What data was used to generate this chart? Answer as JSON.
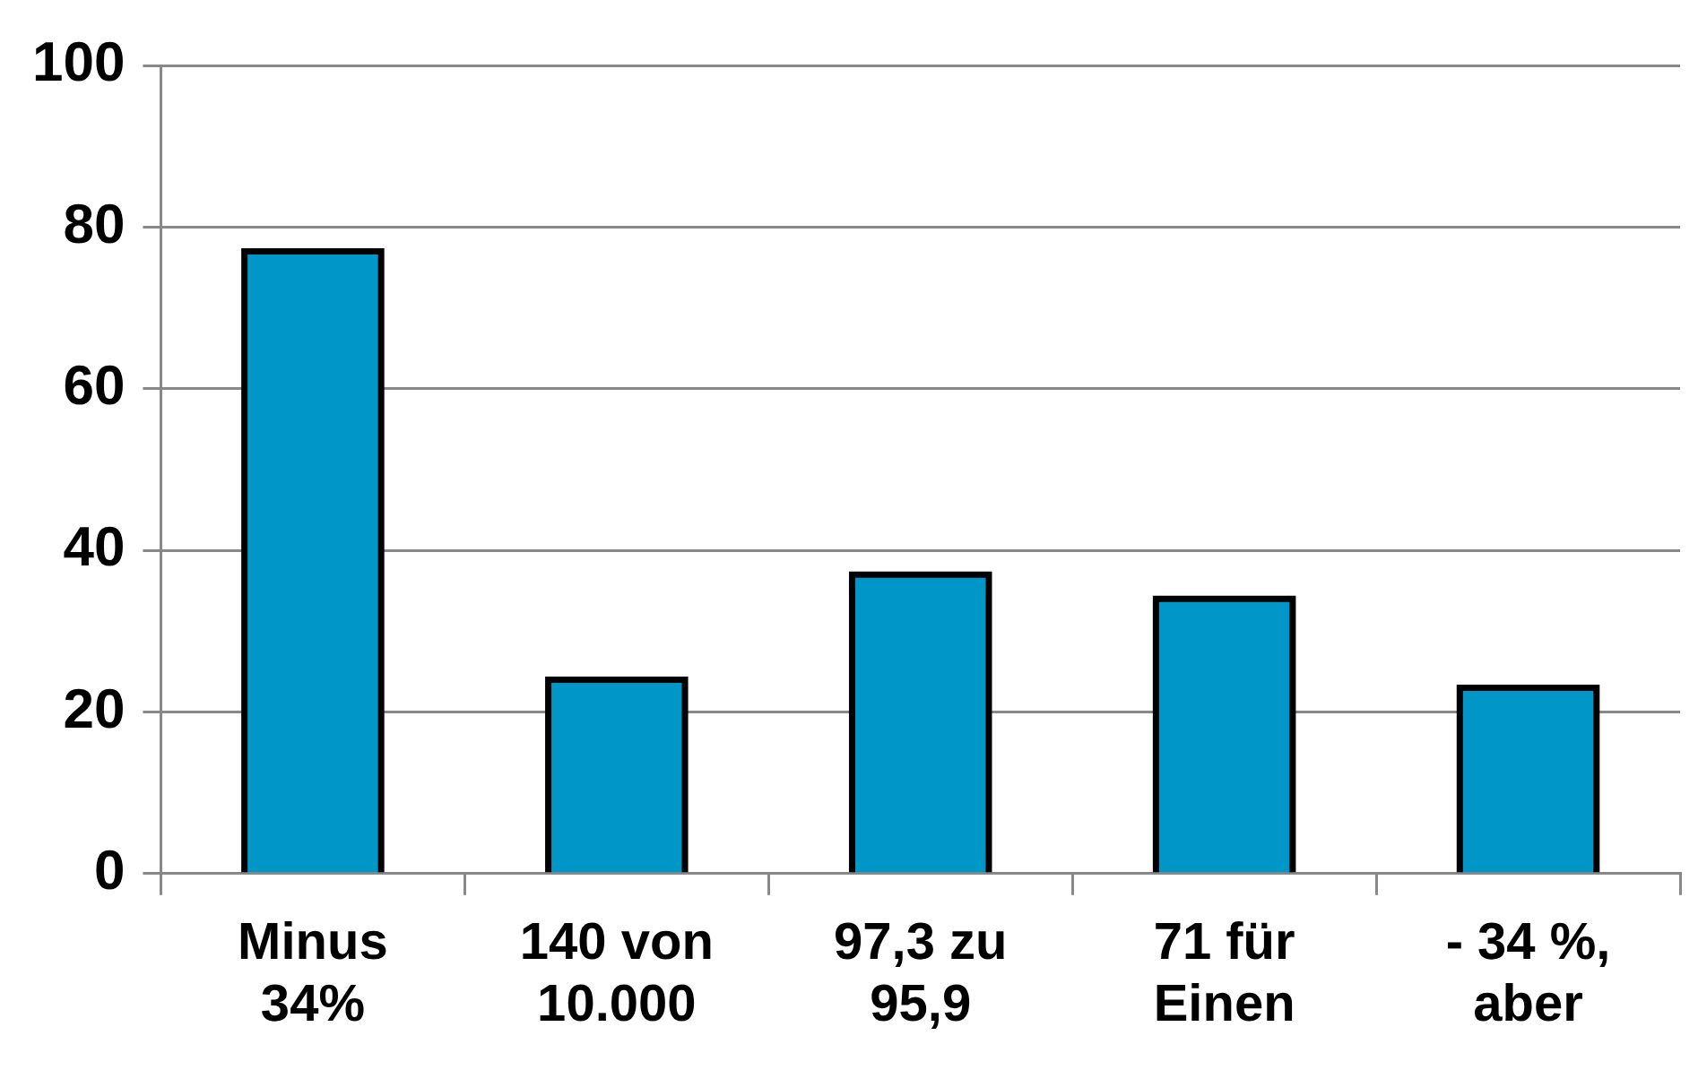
{
  "chart_data": {
    "type": "bar",
    "categories": [
      "Minus 34%",
      "140 von 10.000",
      "97,3 zu 95,9",
      "71 für Einen",
      "- 34 %, aber"
    ],
    "values": [
      77,
      24,
      37,
      34,
      23
    ],
    "color": "#0096c8",
    "ylim": [
      0,
      100
    ],
    "yticks": [
      0,
      20,
      40,
      60,
      80,
      100
    ],
    "grid": "y",
    "legend": false
  }
}
